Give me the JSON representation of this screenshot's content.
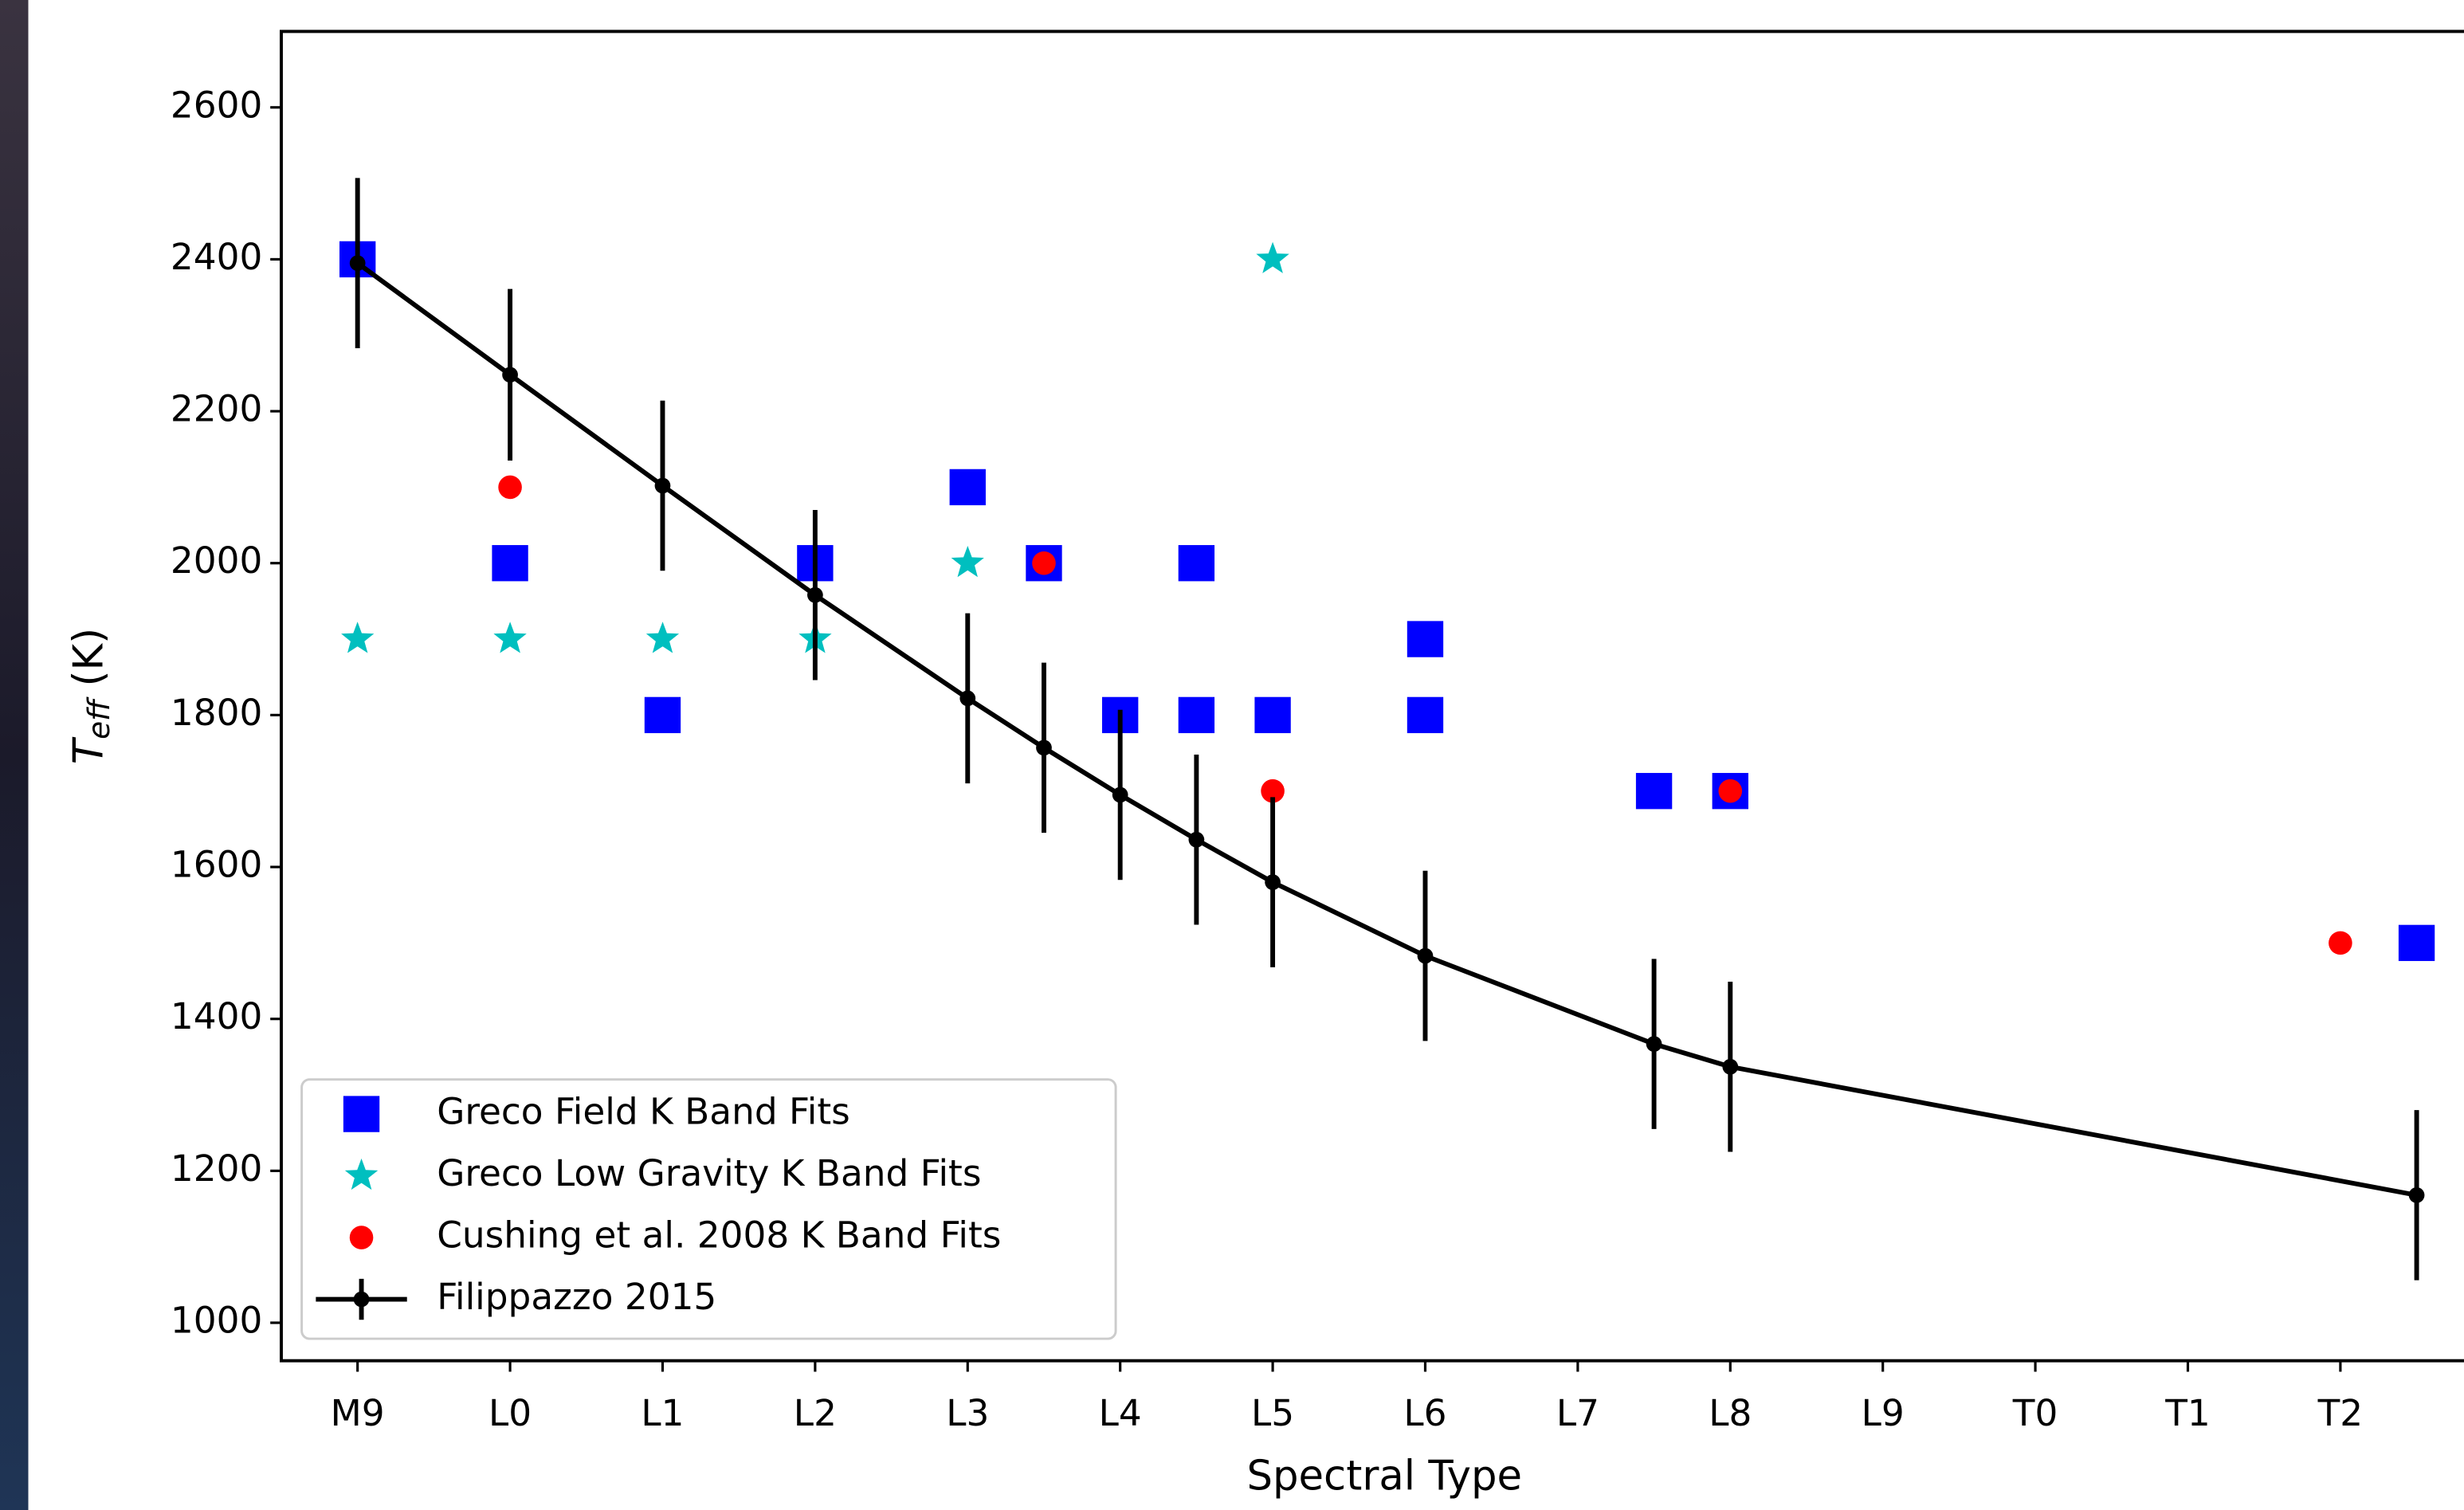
{
  "chart_data": {
    "type": "scatter",
    "xlabel": "Spectral Type",
    "ylabel": "Teff (K)",
    "xlim": [
      -0.5,
      14
    ],
    "ylim": [
      950,
      2700
    ],
    "xticks": [
      {
        "value": 0,
        "label": "M9"
      },
      {
        "value": 1,
        "label": "L0"
      },
      {
        "value": 2,
        "label": "L1"
      },
      {
        "value": 3,
        "label": "L2"
      },
      {
        "value": 4,
        "label": "L3"
      },
      {
        "value": 5,
        "label": "L4"
      },
      {
        "value": 6,
        "label": "L5"
      },
      {
        "value": 7,
        "label": "L6"
      },
      {
        "value": 8,
        "label": "L7"
      },
      {
        "value": 9,
        "label": "L8"
      },
      {
        "value": 10,
        "label": "L9"
      },
      {
        "value": 11,
        "label": "T0"
      },
      {
        "value": 12,
        "label": "T1"
      },
      {
        "value": 13,
        "label": "T2"
      }
    ],
    "yticks": [
      1000,
      1200,
      1400,
      1600,
      1800,
      2000,
      2200,
      2400,
      2600
    ],
    "legend": "lower left",
    "series": [
      {
        "name": "Greco Field K Band Fits",
        "color": "#0000ff",
        "marker": "square",
        "x": [
          0,
          1,
          2,
          3,
          4,
          4.5,
          5,
          5.5,
          5.5,
          6,
          7,
          7,
          8.5,
          9,
          13.5
        ],
        "values": [
          2400,
          2000,
          1800,
          2000,
          2100,
          2000,
          1800,
          2000,
          1800,
          1800,
          1900,
          1800,
          1700,
          1700,
          1500
        ]
      },
      {
        "name": "Greco Low Gravity K Band Fits",
        "color": "#00bfbf",
        "marker": "star",
        "x": [
          0,
          1,
          2,
          3,
          4,
          6
        ],
        "values": [
          1900,
          1900,
          1900,
          1900,
          2000,
          2400
        ]
      },
      {
        "name": "Cushing et al. 2008 K Band Fits",
        "color": "#ff0000",
        "marker": "circle",
        "x": [
          1,
          4.5,
          6,
          9,
          13
        ],
        "values": [
          2100,
          2000,
          1700,
          1700,
          1500
        ]
      },
      {
        "name": "Filippazzo 2015",
        "color": "#000000",
        "marker": "errorline",
        "x": [
          0,
          1,
          2,
          3,
          4,
          4.5,
          5,
          5.5,
          6,
          7,
          8.5,
          9,
          13.5
        ],
        "values": [
          2395,
          2248,
          2102,
          1958,
          1822,
          1757,
          1695,
          1636,
          1580,
          1483,
          1367,
          1337,
          1168
        ],
        "errors": [
          112,
          113,
          112,
          112,
          112,
          112,
          112,
          112,
          112,
          112,
          112,
          112,
          112
        ]
      }
    ]
  }
}
